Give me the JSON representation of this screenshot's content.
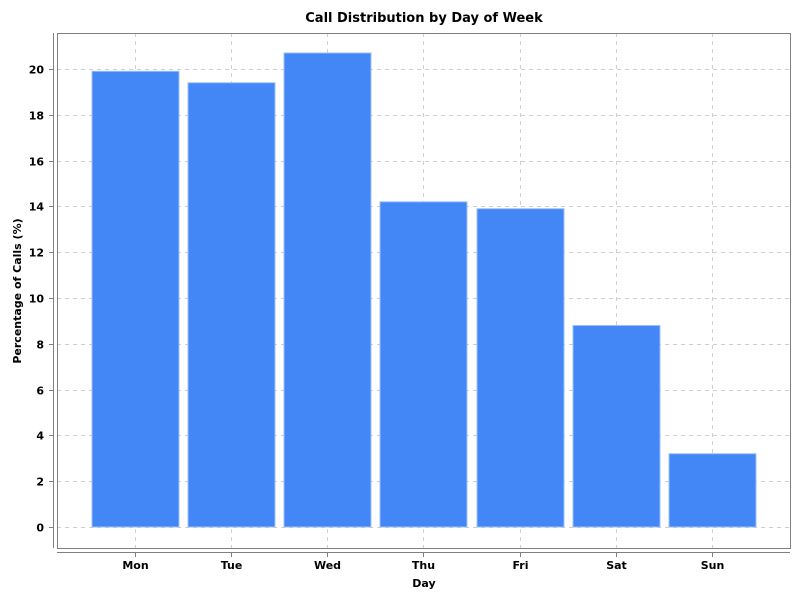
{
  "chart_data": {
    "type": "bar",
    "title": "Call Distribution by Day of Week",
    "xlabel": "Day",
    "ylabel": "Percentage of Calls (%)",
    "categories": [
      "Mon",
      "Tue",
      "Wed",
      "Thu",
      "Fri",
      "Sat",
      "Sun"
    ],
    "values": [
      19.9,
      19.4,
      20.7,
      14.2,
      13.9,
      8.8,
      3.2
    ],
    "ylim": [
      -0.9,
      21.2
    ],
    "yticks": [
      0,
      2,
      4,
      6,
      8,
      10,
      12,
      14,
      16,
      18,
      20
    ],
    "grid": true,
    "legend": null,
    "colors": {
      "bar": "#4287f5",
      "bar_edge": "#9ec0fa",
      "grid": "#cfcfcf",
      "frame": "#808080"
    }
  }
}
